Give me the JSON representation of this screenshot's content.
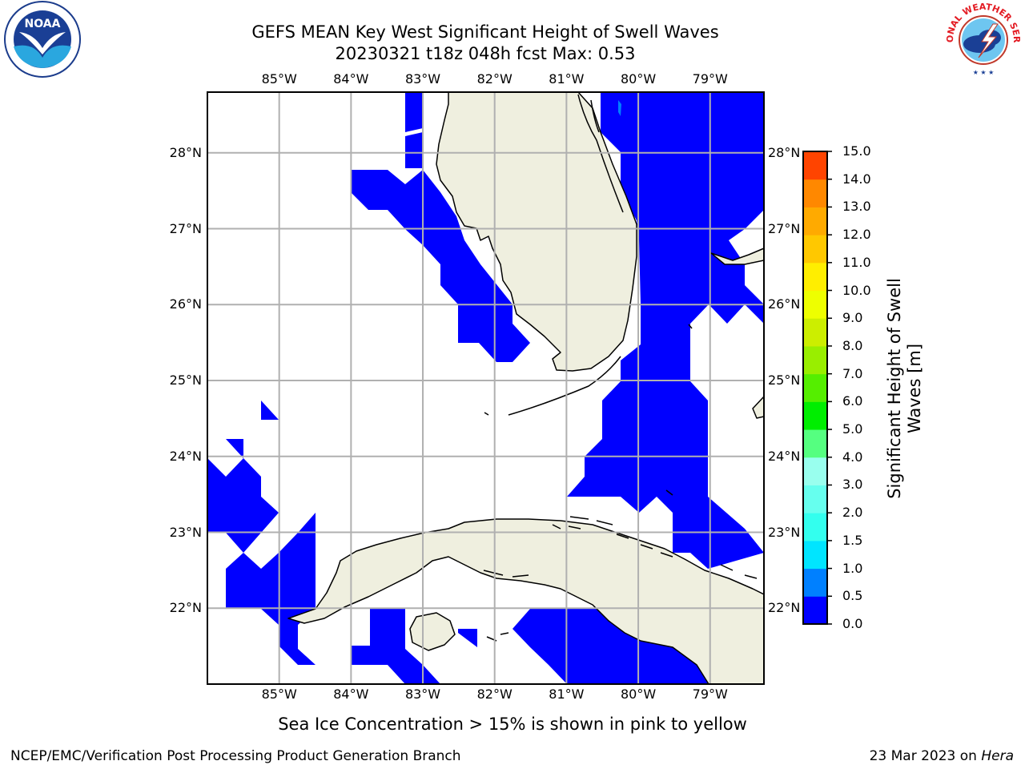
{
  "title_line1": "GEFS MEAN Key West Significant Height of Swell Waves",
  "title_line2": "20230321 t18z 048h fcst   Max: 0.53",
  "lon_ticks": [
    {
      "value": -85,
      "label": "85°W"
    },
    {
      "value": -84,
      "label": "84°W"
    },
    {
      "value": -83,
      "label": "83°W"
    },
    {
      "value": -82,
      "label": "82°W"
    },
    {
      "value": -81,
      "label": "81°W"
    },
    {
      "value": -80,
      "label": "80°W"
    },
    {
      "value": -79,
      "label": "79°W"
    }
  ],
  "lat_ticks": [
    {
      "value": 28,
      "label": "28°N"
    },
    {
      "value": 27,
      "label": "27°N"
    },
    {
      "value": 26,
      "label": "26°N"
    },
    {
      "value": 25,
      "label": "25°N"
    },
    {
      "value": 24,
      "label": "24°N"
    },
    {
      "value": 23,
      "label": "23°N"
    },
    {
      "value": 22,
      "label": "22°N"
    }
  ],
  "map": {
    "lon_range": [
      -86.0,
      -78.25
    ],
    "lat_range": [
      21.0,
      28.8
    ],
    "gridlines": true,
    "land_color": "#efefdf",
    "field_color": "#0000ff"
  },
  "colorbar": {
    "title_line1": "Significant Height of Swell",
    "title_line2": "Waves [m]",
    "levels": [
      "0.0",
      "0.5",
      "1.0",
      "1.5",
      "2.0",
      "3.0",
      "4.0",
      "5.0",
      "6.0",
      "7.0",
      "8.0",
      "9.0",
      "10.0",
      "11.0",
      "12.0",
      "13.0",
      "14.0",
      "15.0"
    ],
    "colors": [
      "#0000ff",
      "#0080ff",
      "#00e5ff",
      "#33ffee",
      "#66ffee",
      "#99ffee",
      "#55ff80",
      "#00ee00",
      "#55ee00",
      "#99ee00",
      "#ccee00",
      "#eeff00",
      "#ffee00",
      "#ffc800",
      "#ffaa00",
      "#ff8800",
      "#ff4400",
      "#ff1100",
      "#ff0000"
    ]
  },
  "footnote": "Sea Ice Concentration > 15% is shown in pink to yellow",
  "credit_left": "NCEP/EMC/Verification Post Processing Product Generation Branch",
  "credit_right_date": "23 Mar 2023 on ",
  "credit_right_host": "Hera",
  "logos": {
    "left": {
      "name": "noaa-logo",
      "text": "NOAA"
    },
    "right": {
      "name": "nws-logo",
      "text": "NATIONAL WEATHER SERVICE"
    }
  }
}
